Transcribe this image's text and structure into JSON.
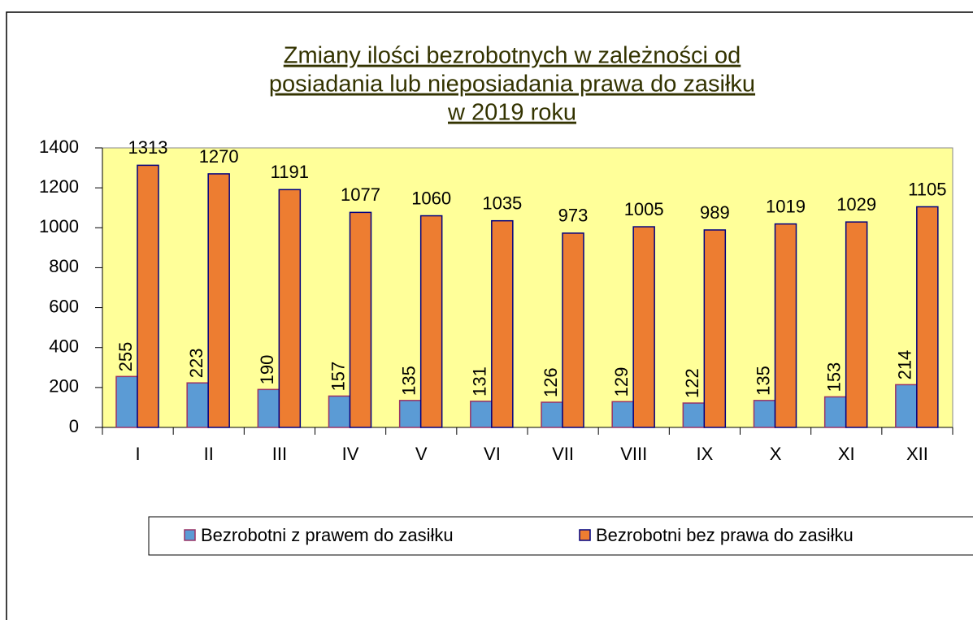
{
  "chart_data": {
    "type": "bar",
    "title": [
      "Zmiany ilości bezrobotnych w zależności od",
      "posiadania lub nieposiadania prawa do zasiłku",
      "w 2019 roku"
    ],
    "categories": [
      "I",
      "II",
      "III",
      "IV",
      "V",
      "VI",
      "VII",
      "VIII",
      "IX",
      "X",
      "XI",
      "XII"
    ],
    "series": [
      {
        "name": "Bezrobotni z prawem do zasiłku",
        "color": "#5b9bd5",
        "values": [
          255,
          223,
          190,
          157,
          135,
          131,
          126,
          129,
          122,
          135,
          153,
          214
        ]
      },
      {
        "name": "Bezrobotni bez prawa do zasiłku",
        "color": "#ed7d31",
        "values": [
          1313,
          1270,
          1191,
          1077,
          1060,
          1035,
          973,
          1005,
          989,
          1019,
          1029,
          1105
        ]
      }
    ],
    "ylim": [
      0,
      1400
    ],
    "yticks": [
      0,
      200,
      400,
      600,
      800,
      1000,
      1200,
      1400
    ],
    "grid": false
  }
}
